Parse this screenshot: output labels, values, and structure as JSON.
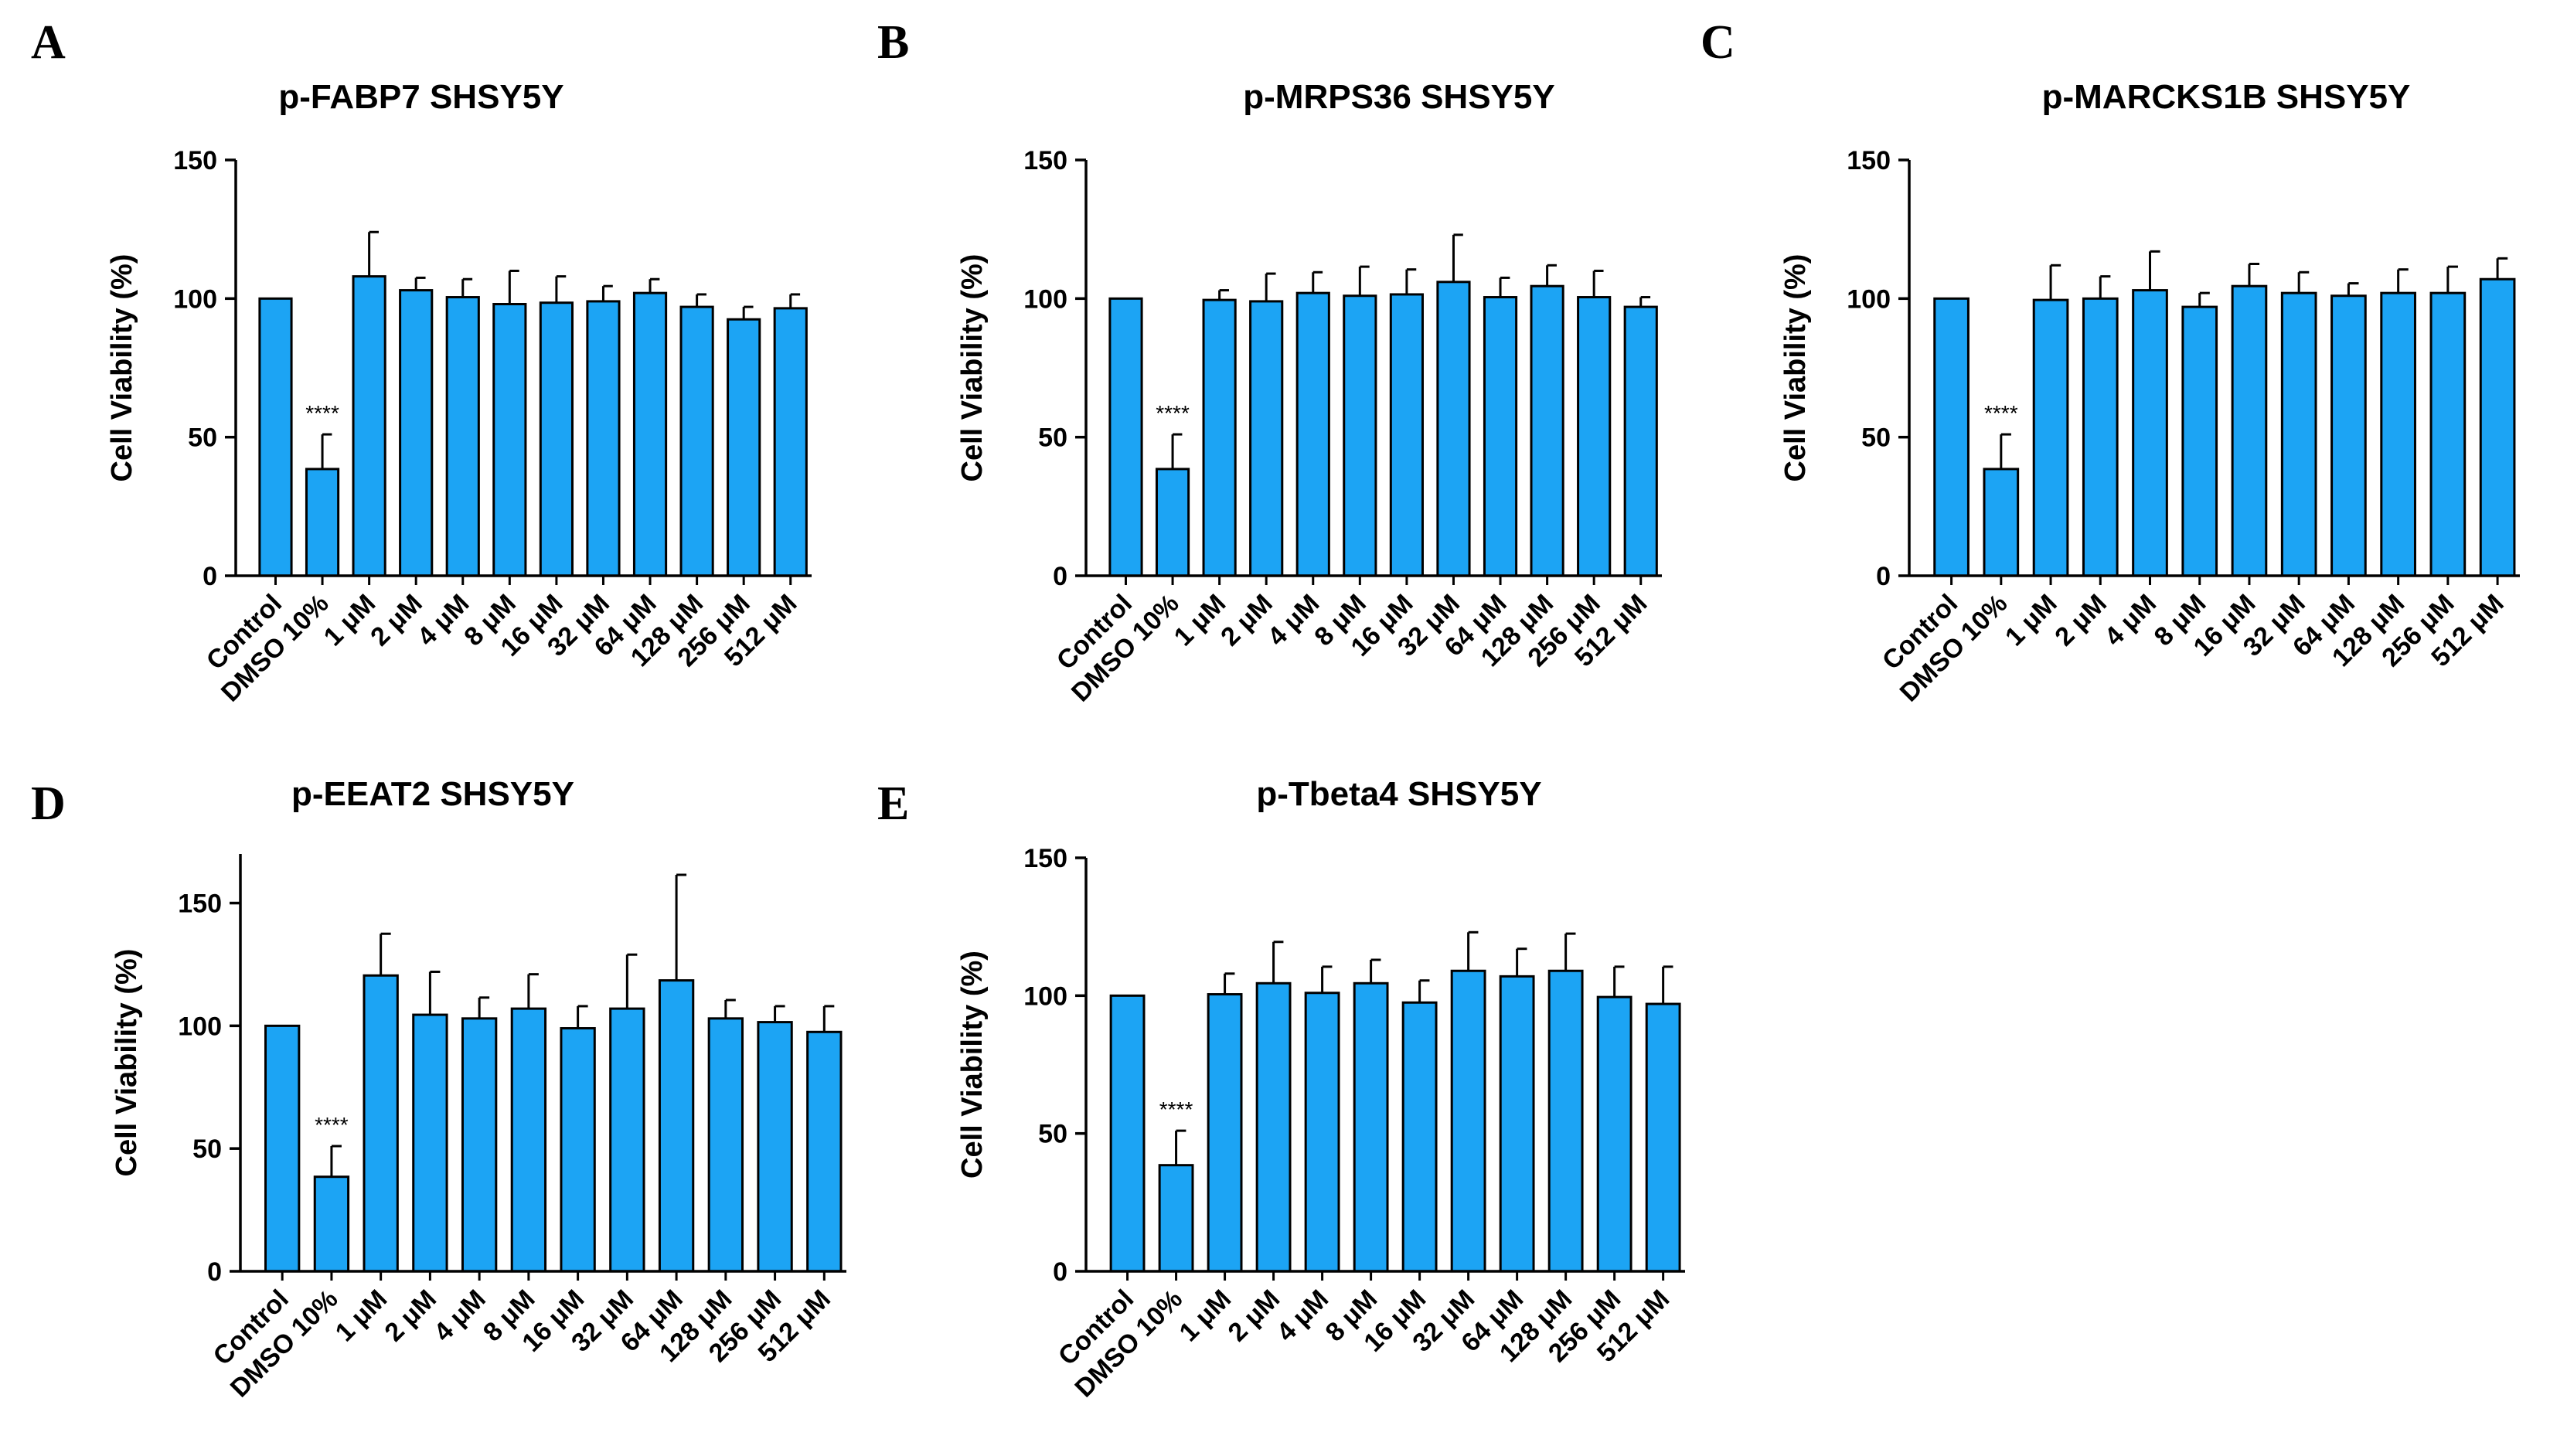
{
  "chart_data": [
    {
      "panel": "A",
      "type": "bar",
      "title": "p-FABP7 SHSY5Y",
      "xlabel": "",
      "ylabel": "Cell Viability (%)",
      "ylim": [
        0,
        150
      ],
      "yticks": [
        "0",
        "50",
        "100",
        "150"
      ],
      "categories": [
        "Control",
        "DMSO 10%",
        "1 μM",
        "2 μM",
        "4 μM",
        "8 μM",
        "16 μM",
        "32 μM",
        "64 μM",
        "128 μM",
        "256 μM",
        "512 μM"
      ],
      "values": [
        100,
        38.5,
        108,
        103,
        100.5,
        98,
        98.5,
        99,
        102,
        97,
        92.5,
        96.5
      ],
      "errors": [
        0,
        12.5,
        16,
        4.5,
        6.5,
        12,
        9.5,
        5.5,
        5,
        4.5,
        4.5,
        5
      ],
      "annotations": [
        {
          "category": "DMSO 10%",
          "text": "****"
        }
      ],
      "bar_color": "#1ca4f4",
      "grid": false
    },
    {
      "panel": "B",
      "type": "bar",
      "title": "p-MRPS36 SHSY5Y",
      "xlabel": "",
      "ylabel": "Cell Viability (%)",
      "ylim": [
        0,
        150
      ],
      "yticks": [
        "0",
        "50",
        "100",
        "150"
      ],
      "categories": [
        "Control",
        "DMSO 10%",
        "1 μM",
        "2 μM",
        "4 μM",
        "8 μM",
        "16 μM",
        "32 μM",
        "64 μM",
        "128 μM",
        "256 μM",
        "512 μM"
      ],
      "values": [
        100,
        38.5,
        99.5,
        99,
        102,
        101,
        101.5,
        106,
        100.5,
        104.5,
        100.5,
        97
      ],
      "errors": [
        0,
        12.5,
        3.5,
        10,
        7.5,
        10.5,
        9,
        17,
        7,
        7.5,
        9.5,
        3.5
      ],
      "annotations": [
        {
          "category": "DMSO 10%",
          "text": "****"
        }
      ],
      "bar_color": "#1ca4f4",
      "grid": false
    },
    {
      "panel": "C",
      "type": "bar",
      "title": "p-MARCKS1B SHSY5Y",
      "xlabel": "",
      "ylabel": "Cell Viability (%)",
      "ylim": [
        0,
        150
      ],
      "yticks": [
        "0",
        "50",
        "100",
        "150"
      ],
      "categories": [
        "Control",
        "DMSO 10%",
        "1 μM",
        "2 μM",
        "4 μM",
        "8 μM",
        "16 μM",
        "32 μM",
        "64 μM",
        "128 μM",
        "256 μM",
        "512 μM"
      ],
      "values": [
        100,
        38.5,
        99.5,
        100,
        103,
        97,
        104.5,
        102,
        101,
        102,
        102,
        107
      ],
      "errors": [
        0,
        12.5,
        12.5,
        8,
        14,
        5,
        8,
        7.5,
        4.5,
        8.5,
        9.5,
        7.5
      ],
      "annotations": [
        {
          "category": "DMSO 10%",
          "text": "****"
        }
      ],
      "bar_color": "#1ca4f4",
      "grid": false
    },
    {
      "panel": "D",
      "type": "bar",
      "title": "p-EEAT2 SHSY5Y",
      "xlabel": "",
      "ylabel": "Cell Viability (%)",
      "ylim": [
        0,
        170
      ],
      "yticks": [
        "0",
        "50",
        "100",
        "150"
      ],
      "categories": [
        "Control",
        "DMSO 10%",
        "1 μM",
        "2 μM",
        "4 μM",
        "8 μM",
        "16 μM",
        "32 μM",
        "64 μM",
        "128 μM",
        "256 μM",
        "512 μM"
      ],
      "values": [
        100,
        38.5,
        120.5,
        104.5,
        103,
        107,
        99,
        107,
        118.5,
        103,
        101.5,
        97.5
      ],
      "errors": [
        0,
        12.5,
        17,
        17.5,
        8.5,
        14,
        9,
        22,
        43,
        7.5,
        6.5,
        10.5
      ],
      "annotations": [
        {
          "category": "DMSO 10%",
          "text": "****"
        }
      ],
      "bar_color": "#1ca4f4",
      "grid": false
    },
    {
      "panel": "E",
      "type": "bar",
      "title": "p-Tbeta4 SHSY5Y",
      "xlabel": "",
      "ylabel": "Cell Viability (%)",
      "ylim": [
        0,
        150
      ],
      "yticks": [
        "0",
        "50",
        "100",
        "150"
      ],
      "categories": [
        "Control",
        "DMSO 10%",
        "1 μM",
        "2 μM",
        "4 μM",
        "8 μM",
        "16 μM",
        "32 μM",
        "64 μM",
        "128 μM",
        "256 μM",
        "512 μM"
      ],
      "values": [
        100,
        38.5,
        100.5,
        104.5,
        101,
        104.5,
        97.5,
        109,
        107,
        109,
        99.5,
        97
      ],
      "errors": [
        0,
        12.5,
        7.5,
        15,
        9.5,
        8.5,
        8,
        14,
        10,
        13.5,
        11,
        13.5
      ],
      "annotations": [
        {
          "category": "DMSO 10%",
          "text": "****"
        }
      ],
      "bar_color": "#1ca4f4",
      "grid": false
    }
  ]
}
